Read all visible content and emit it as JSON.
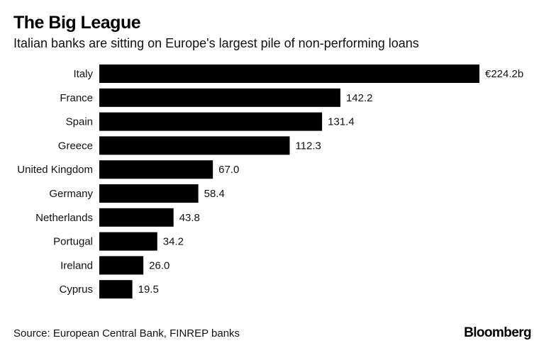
{
  "chart_data": {
    "type": "bar",
    "orientation": "horizontal",
    "title": "The Big League",
    "subtitle": "Italian banks are sitting on Europe's largest pile of non-performing loans",
    "categories": [
      "Italy",
      "France",
      "Spain",
      "Greece",
      "United Kingdom",
      "Germany",
      "Netherlands",
      "Portugal",
      "Ireland",
      "Cyprus"
    ],
    "values": [
      224.2,
      142.2,
      131.4,
      112.3,
      67.0,
      58.4,
      43.8,
      34.2,
      26.0,
      19.5
    ],
    "value_labels": [
      "€224.2b",
      "142.2",
      "131.4",
      "112.3",
      "67.0",
      "58.4",
      "43.8",
      "34.2",
      "26.0",
      "19.5"
    ],
    "unit": "€ billions",
    "xlabel": "",
    "ylabel": "",
    "xlim": [
      0,
      224.2
    ],
    "grid": false,
    "legend": "none",
    "bar_color": "#000000"
  },
  "footer": {
    "source": "Source: European Central Bank, FINREP banks",
    "brand": "Bloomberg"
  }
}
